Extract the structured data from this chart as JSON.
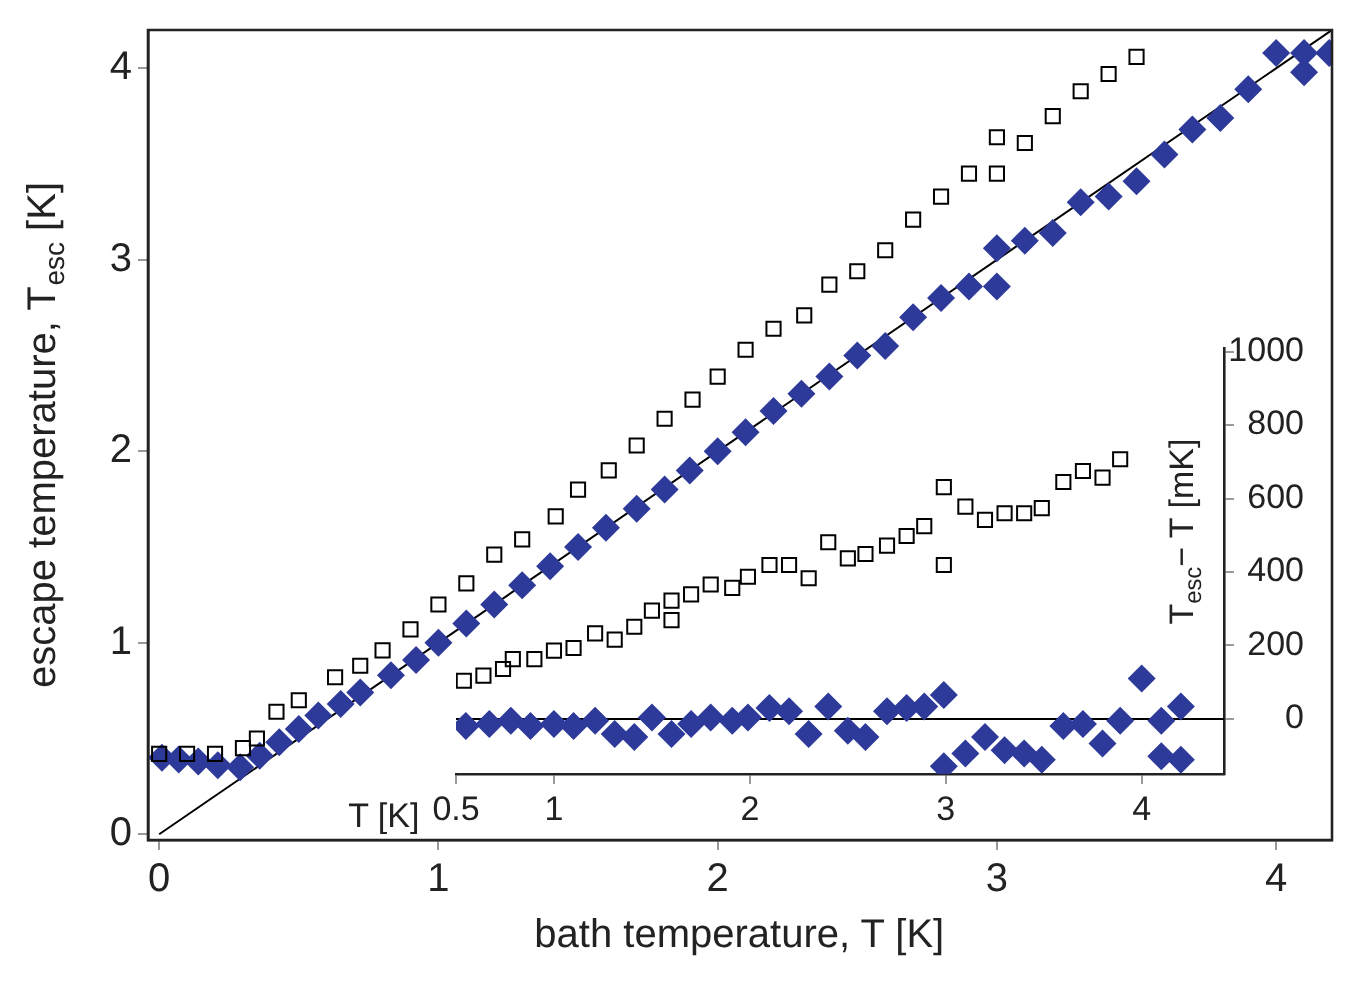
{
  "chart_data": [
    {
      "type": "scatter",
      "xlabel": "bath temperature, T [K]",
      "ylabel": "escape temperature, T$_{esc}$ [K]",
      "xlim": [
        -0.04,
        4.2
      ],
      "ylim": [
        -0.03,
        4.2
      ],
      "xticks": [
        0,
        1,
        2,
        3,
        4
      ],
      "yticks": [
        0,
        1,
        2,
        3,
        4
      ],
      "grid": false,
      "legend": false,
      "series": [
        {
          "type": "scatter",
          "marker": "square",
          "color": "#000000",
          "x": [
            0.0,
            0.1,
            0.2,
            0.3,
            0.35,
            0.42,
            0.5,
            0.63,
            0.72,
            0.8,
            0.9,
            1.0,
            1.1,
            1.2,
            1.3,
            1.42,
            1.5,
            1.61,
            1.71,
            1.81,
            1.91,
            2.0,
            2.1,
            2.2,
            2.31,
            2.4,
            2.5,
            2.6,
            2.7,
            2.8,
            2.9,
            3.0,
            3.0,
            3.1,
            3.2,
            3.3,
            3.4,
            3.5
          ],
          "values": [
            0.42,
            0.42,
            0.42,
            0.45,
            0.5,
            0.64,
            0.7,
            0.82,
            0.88,
            0.96,
            1.07,
            1.2,
            1.31,
            1.46,
            1.54,
            1.66,
            1.8,
            1.9,
            2.03,
            2.17,
            2.27,
            2.39,
            2.53,
            2.64,
            2.71,
            2.87,
            2.94,
            3.05,
            3.21,
            3.33,
            3.45,
            3.45,
            3.64,
            3.61,
            3.75,
            3.88,
            3.97,
            4.06
          ]
        },
        {
          "type": "scatter",
          "marker": "diamond",
          "color": "#2e3a9a",
          "x": [
            0.01,
            0.07,
            0.14,
            0.21,
            0.29,
            0.36,
            0.43,
            0.5,
            0.57,
            0.65,
            0.72,
            0.83,
            0.92,
            1.0,
            1.1,
            1.2,
            1.3,
            1.4,
            1.5,
            1.6,
            1.71,
            1.81,
            1.9,
            2.0,
            2.1,
            2.2,
            2.3,
            2.4,
            2.5,
            2.6,
            2.7,
            2.8,
            2.9,
            3.0,
            3.0,
            3.1,
            3.2,
            3.3,
            3.4,
            3.5,
            3.6,
            3.7,
            3.8,
            3.9,
            4.0,
            4.1,
            4.1,
            4.19
          ],
          "values": [
            0.4,
            0.39,
            0.38,
            0.36,
            0.35,
            0.41,
            0.48,
            0.55,
            0.62,
            0.68,
            0.74,
            0.83,
            0.91,
            1.0,
            1.1,
            1.2,
            1.3,
            1.4,
            1.5,
            1.6,
            1.7,
            1.8,
            1.9,
            2.0,
            2.1,
            2.21,
            2.3,
            2.39,
            2.5,
            2.55,
            2.7,
            2.8,
            2.86,
            3.06,
            2.86,
            3.1,
            3.14,
            3.3,
            3.33,
            3.41,
            3.55,
            3.68,
            3.74,
            3.89,
            4.08,
            4.08,
            3.98,
            4.08
          ]
        },
        {
          "type": "line",
          "marker": "none",
          "color": "#000000",
          "x": [
            0,
            4.2
          ],
          "values": [
            0,
            4.2
          ]
        }
      ]
    },
    {
      "type": "scatter",
      "xlabel": "T [K]",
      "y2label": "T$_{esc}$− T [mK]",
      "xlim": [
        0.5,
        4.42
      ],
      "y2lim": [
        -150,
        1010
      ],
      "xticks": [
        0.5,
        1,
        2,
        3,
        4
      ],
      "y2ticks": [
        0,
        200,
        400,
        600,
        800,
        1000
      ],
      "grid": false,
      "legend": false,
      "ref_lines": [
        {
          "axis": "y2",
          "value": 0,
          "color": "#000000"
        }
      ],
      "series": [
        {
          "type": "scatter",
          "marker": "square",
          "axis": "y2",
          "color": "#000000",
          "x": [
            0.54,
            0.64,
            0.74,
            0.79,
            0.9,
            1.0,
            1.1,
            1.21,
            1.31,
            1.41,
            1.5,
            1.6,
            1.6,
            1.7,
            1.8,
            1.91,
            1.99,
            2.1,
            2.2,
            2.3,
            2.4,
            2.5,
            2.59,
            2.7,
            2.8,
            2.89,
            2.99,
            2.99,
            3.1,
            3.2,
            3.3,
            3.4,
            3.49,
            3.6,
            3.7,
            3.8,
            3.89
          ],
          "values": [
            104,
            118,
            136,
            163,
            163,
            186,
            193,
            233,
            216,
            251,
            295,
            322,
            269,
            339,
            366,
            357,
            387,
            419,
            419,
            383,
            481,
            437,
            449,
            472,
            498,
            525,
            631,
            419,
            578,
            542,
            560,
            560,
            574,
            645,
            675,
            657,
            707
          ]
        },
        {
          "type": "scatter",
          "marker": "diamond",
          "axis": "y2",
          "color": "#2e3a9a",
          "x": [
            0.55,
            0.67,
            0.78,
            0.88,
            1.0,
            1.1,
            1.21,
            1.31,
            1.41,
            1.5,
            1.6,
            1.7,
            1.8,
            1.91,
            1.99,
            2.1,
            2.2,
            2.3,
            2.4,
            2.5,
            2.59,
            2.7,
            2.8,
            2.89,
            2.99,
            2.99,
            3.1,
            3.2,
            3.3,
            3.4,
            3.49,
            3.6,
            3.7,
            3.8,
            3.89,
            4.0,
            4.1,
            4.1,
            4.2,
            4.2
          ],
          "values": [
            -19,
            -14,
            -5,
            -19,
            -14,
            -19,
            -5,
            -41,
            -49,
            4,
            -41,
            -14,
            4,
            -5,
            4,
            30,
            21,
            -41,
            34,
            -32,
            -49,
            21,
            30,
            34,
            65,
            -129,
            -94,
            -49,
            -85,
            -94,
            -111,
            -19,
            -14,
            -67,
            -5,
            110,
            -5,
            -102,
            34,
            -111
          ]
        }
      ]
    }
  ]
}
